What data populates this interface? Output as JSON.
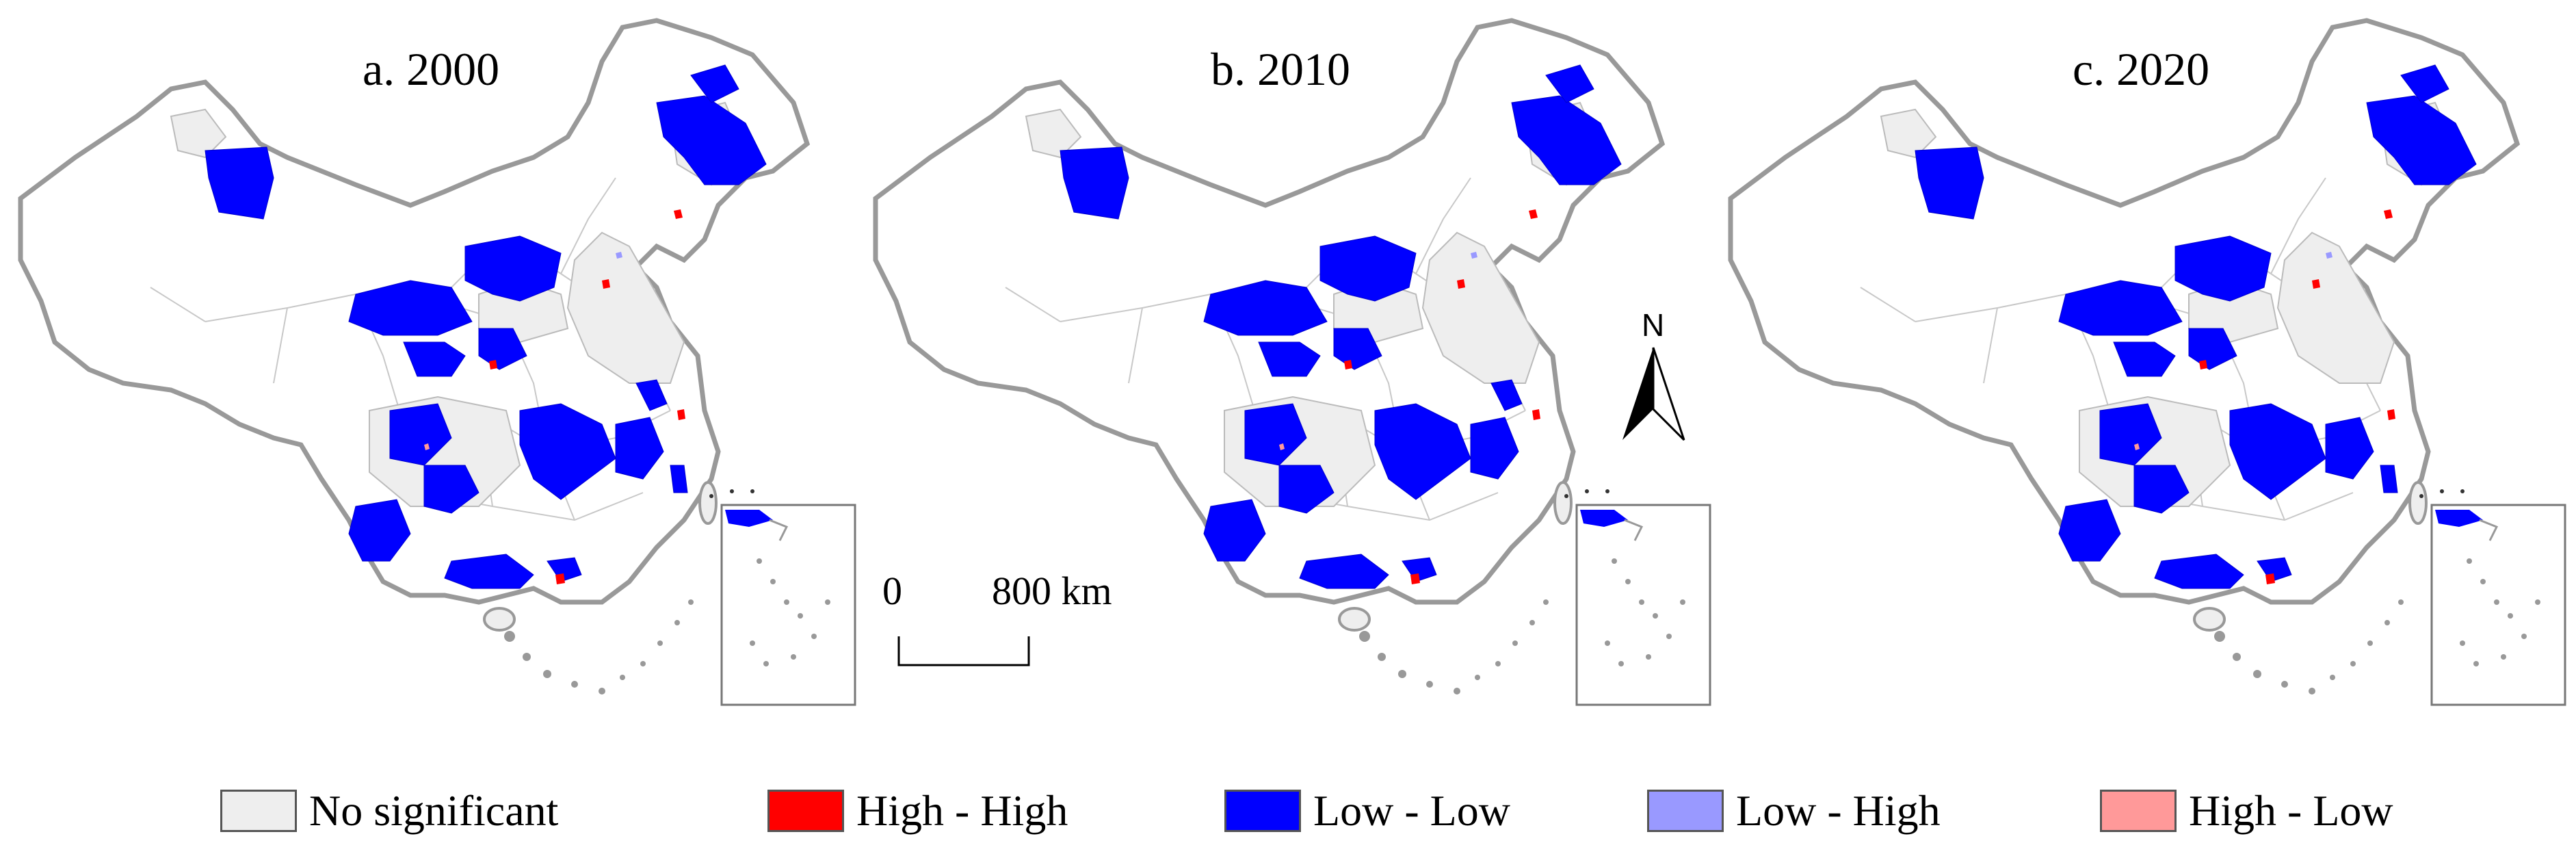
{
  "figure": {
    "panels": [
      {
        "id": "a",
        "title": "a. 2000"
      },
      {
        "id": "b",
        "title": "b. 2010"
      },
      {
        "id": "c",
        "title": "c. 2020"
      }
    ],
    "scalebar": {
      "zero_label": "0",
      "distance_label": "800 km"
    },
    "north_arrow": {
      "label": "N",
      "icon": "north-arrow-icon"
    }
  },
  "legend": {
    "items": [
      {
        "key": "no_significant",
        "label": "No significant",
        "color": "#eeeeee"
      },
      {
        "key": "high_high",
        "label": "High - High",
        "color": "#ff0000"
      },
      {
        "key": "low_low",
        "label": "Low - Low",
        "color": "#0000ff"
      },
      {
        "key": "low_high",
        "label": "Low - High",
        "color": "#9999ff"
      },
      {
        "key": "high_low",
        "label": "High - Low",
        "color": "#ff9999"
      }
    ]
  },
  "colors": {
    "boundary": "#999999",
    "province_lines": "#c8c8c8",
    "background": "#ffffff"
  }
}
